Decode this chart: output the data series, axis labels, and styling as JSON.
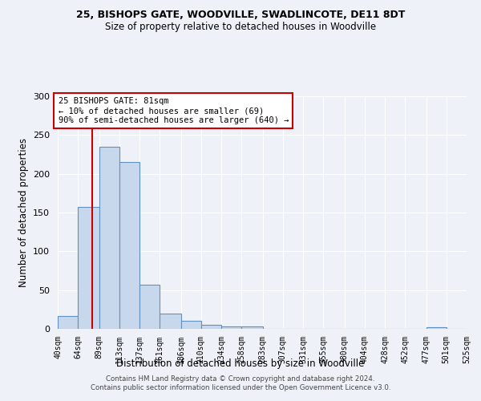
{
  "title1": "25, BISHOPS GATE, WOODVILLE, SWADLINCOTE, DE11 8DT",
  "title2": "Size of property relative to detached houses in Woodville",
  "xlabel": "Distribution of detached houses by size in Woodville",
  "ylabel": "Number of detached properties",
  "footer1": "Contains HM Land Registry data © Crown copyright and database right 2024.",
  "footer2": "Contains public sector information licensed under the Open Government Licence v3.0.",
  "bin_edges": [
    40,
    64,
    89,
    113,
    137,
    161,
    186,
    210,
    234,
    258,
    283,
    307,
    331,
    355,
    380,
    404,
    428,
    452,
    477,
    501,
    525
  ],
  "bin_heights": [
    17,
    157,
    235,
    215,
    57,
    20,
    10,
    5,
    3,
    3,
    0,
    0,
    0,
    0,
    0,
    0,
    0,
    0,
    2,
    0
  ],
  "bar_color": "#c8d8ec",
  "bar_edge_color": "#6090c0",
  "bg_color": "#eef2f8",
  "grid_color": "#ffffff",
  "vline_x": 81,
  "vline_color": "#cc0000",
  "annotation_line1": "25 BISHOPS GATE: 81sqm",
  "annotation_line2": "← 10% of detached houses are smaller (69)",
  "annotation_line3": "90% of semi-detached houses are larger (640) →",
  "annotation_box_color": "#ffffff",
  "annotation_box_edge_color": "#cc0000",
  "ylim": [
    0,
    300
  ],
  "yticks": [
    0,
    50,
    100,
    150,
    200,
    250,
    300
  ]
}
